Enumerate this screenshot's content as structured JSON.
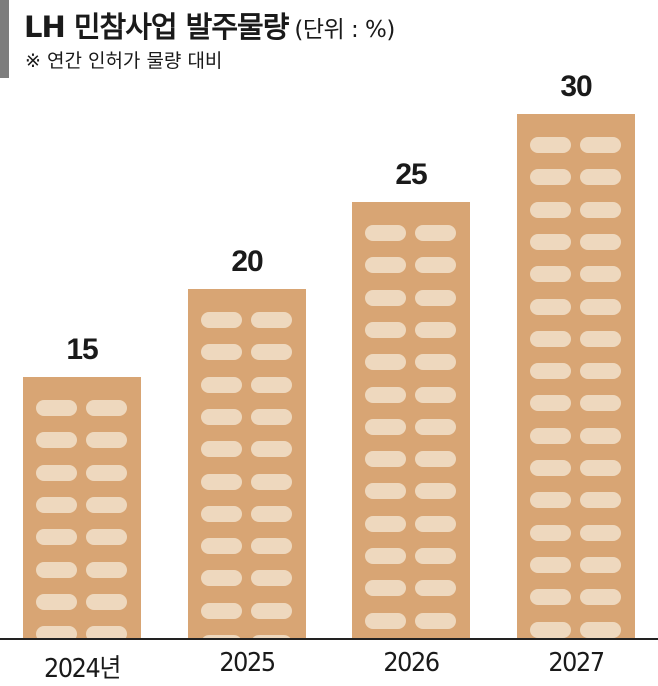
{
  "header": {
    "title": "LH 민참사업 발주물량",
    "unit": "(단위 : %)",
    "subtitle": "※ 연간 인허가 물량 대비"
  },
  "colors": {
    "bar": "#d8a574",
    "window": "#eed8be",
    "side_bar": "#7d7d7d",
    "text": "#1a1a1a"
  },
  "chart_data": {
    "type": "bar",
    "title": "LH 민참사업 발주물량 (단위 : %)",
    "subtitle": "※ 연간 인허가 물량 대비",
    "categories": [
      "2024년",
      "2025",
      "2026",
      "2027"
    ],
    "values": [
      15,
      20,
      25,
      30
    ],
    "xlabel": "",
    "ylabel": "%",
    "ylim": [
      0,
      30
    ],
    "grid": false,
    "legend": null,
    "style": "building-shaped bars with window pattern, value labels above bars"
  },
  "bars": [
    {
      "label": "2024년",
      "value": "15"
    },
    {
      "label": "2025",
      "value": "20"
    },
    {
      "label": "2026",
      "value": "25"
    },
    {
      "label": "2027",
      "value": "30"
    }
  ]
}
